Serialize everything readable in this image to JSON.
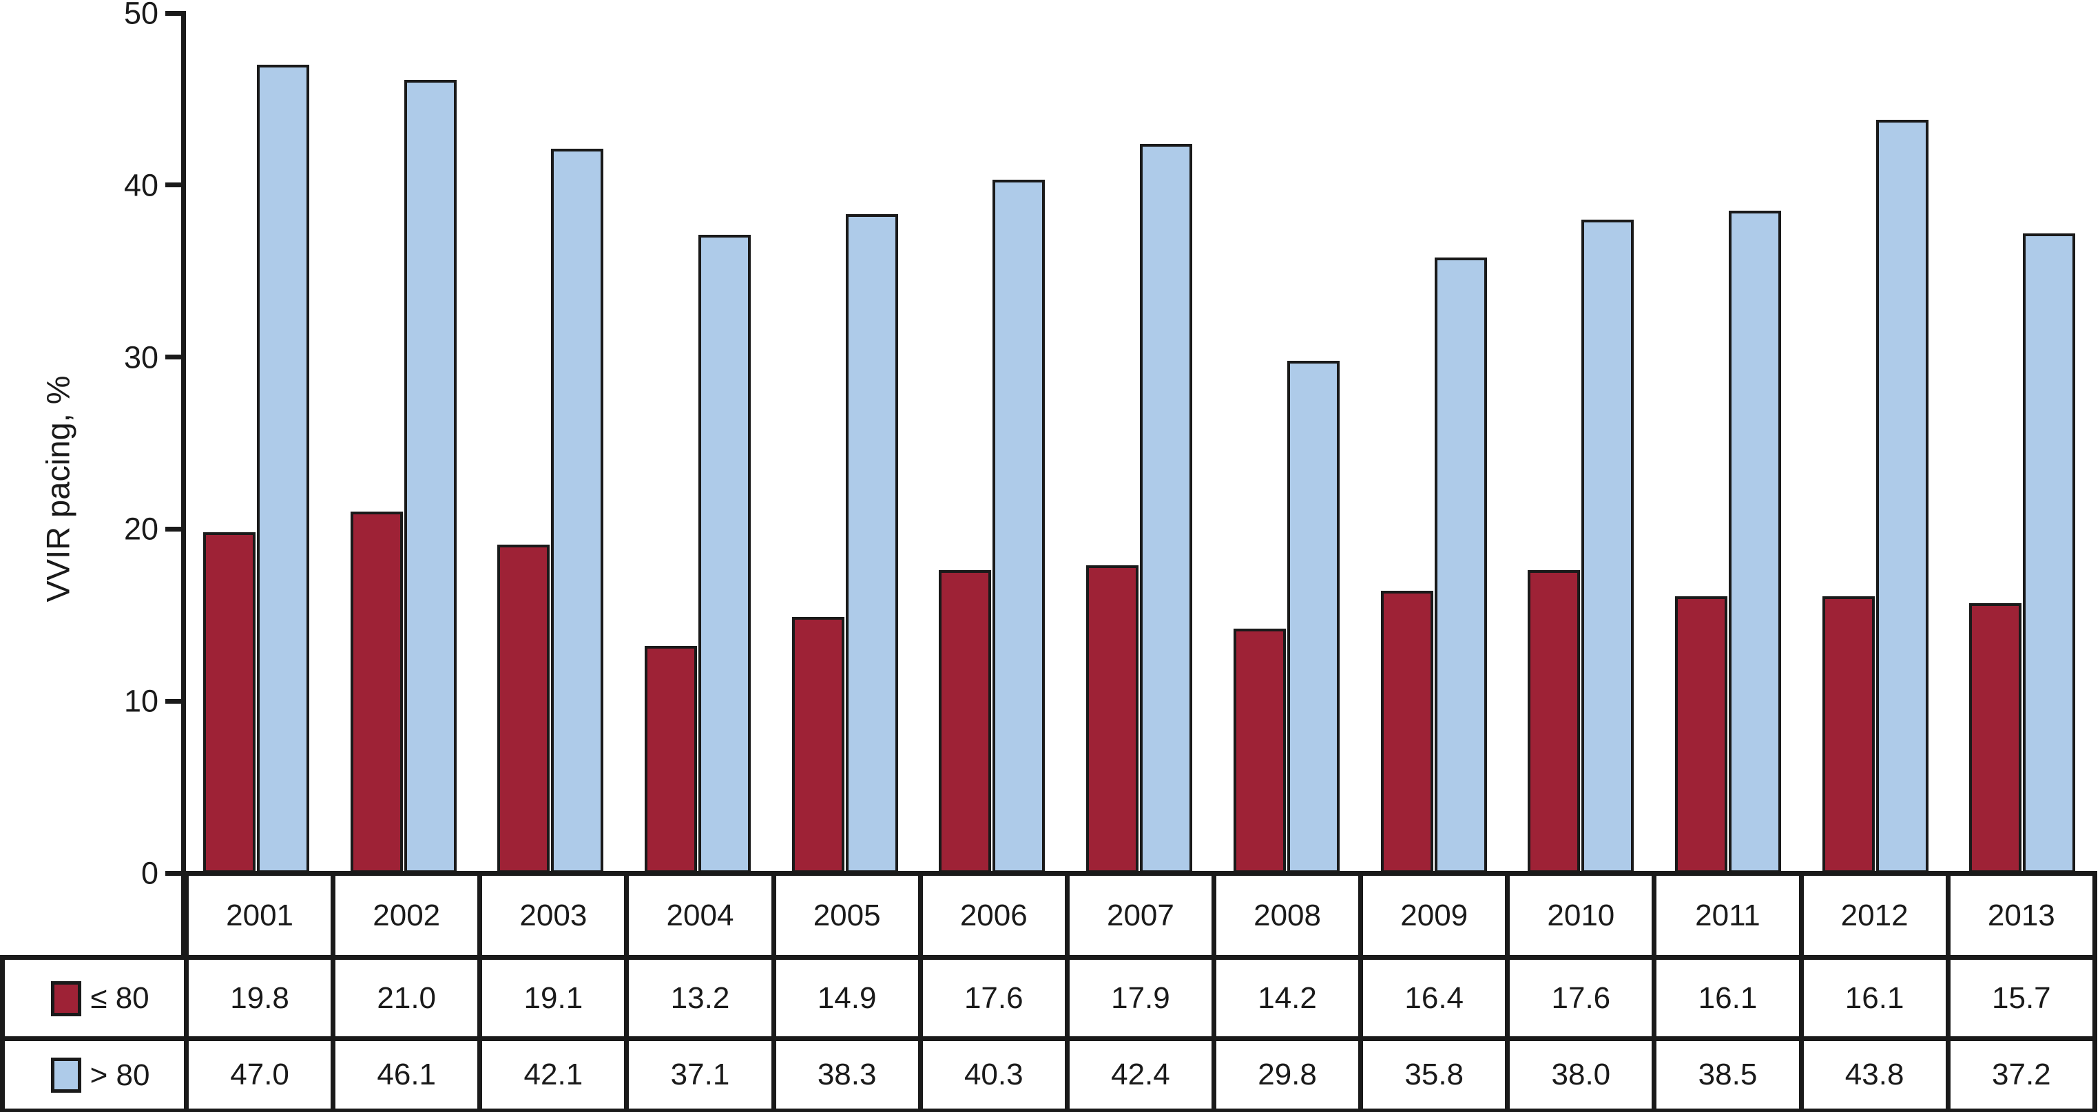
{
  "chart_data": {
    "type": "bar",
    "title": "",
    "xlabel": "",
    "ylabel": "VVIR pacing, %",
    "ylim": [
      0,
      50
    ],
    "yticks": [
      0,
      10,
      20,
      30,
      40,
      50
    ],
    "grid": false,
    "legend_position": "table-below-left-column",
    "value_format": "one-decimal",
    "categories": [
      "2001",
      "2002",
      "2003",
      "2004",
      "2005",
      "2006",
      "2007",
      "2008",
      "2009",
      "2010",
      "2011",
      "2012",
      "2013"
    ],
    "series": [
      {
        "id": "le80",
        "name": "≤ 80",
        "color": "#9e2236",
        "values": [
          19.8,
          21.0,
          19.1,
          13.2,
          14.9,
          17.6,
          17.9,
          14.2,
          16.4,
          17.6,
          16.1,
          16.1,
          15.7
        ]
      },
      {
        "id": "gt80",
        "name": "> 80",
        "color": "#aecbe9",
        "values": [
          47.0,
          46.1,
          42.1,
          37.1,
          38.3,
          40.3,
          42.4,
          29.8,
          35.8,
          38.0,
          38.5,
          43.8,
          37.2
        ]
      }
    ]
  },
  "colors": {
    "outline": "#1a1a1a",
    "text": "#1a1a1a",
    "background": "#ffffff"
  }
}
